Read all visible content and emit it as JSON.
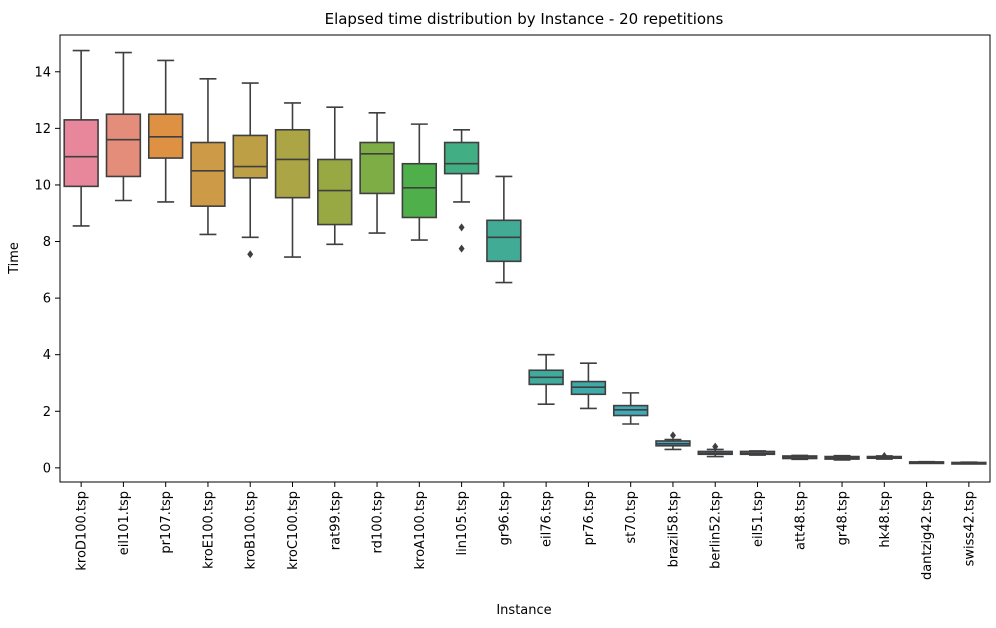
{
  "chart_data": {
    "type": "box",
    "title": "Elapsed time distribution by Instance - 20 repetitions",
    "xlabel": "Instance",
    "ylabel": "Time",
    "ylim": [
      -0.5,
      15.3
    ],
    "yticks": [
      0,
      2,
      4,
      6,
      8,
      10,
      12,
      14
    ],
    "grid": false,
    "categories": [
      "kroD100.tsp",
      "eil101.tsp",
      "pr107.tsp",
      "kroE100.tsp",
      "kroB100.tsp",
      "kroC100.tsp",
      "rat99.tsp",
      "rd100.tsp",
      "kroA100.tsp",
      "lin105.tsp",
      "gr96.tsp",
      "eil76.tsp",
      "pr76.tsp",
      "st70.tsp",
      "brazil58.tsp",
      "berlin52.tsp",
      "eil51.tsp",
      "att48.tsp",
      "gr48.tsp",
      "hk48.tsp",
      "dantzig42.tsp",
      "swiss42.tsp"
    ],
    "boxes": [
      {
        "min": 8.55,
        "q1": 9.95,
        "median": 11.0,
        "q3": 12.3,
        "max": 14.75,
        "outliers": [],
        "color": "#e8869b"
      },
      {
        "min": 9.45,
        "q1": 10.3,
        "median": 11.6,
        "q3": 12.5,
        "max": 14.68,
        "outliers": [],
        "color": "#e48d7b"
      },
      {
        "min": 9.4,
        "q1": 10.95,
        "median": 11.7,
        "q3": 12.5,
        "max": 14.4,
        "outliers": [],
        "color": "#df9143"
      },
      {
        "min": 8.25,
        "q1": 9.25,
        "median": 10.5,
        "q3": 11.5,
        "max": 13.75,
        "outliers": [],
        "color": "#cd9a47"
      },
      {
        "min": 8.15,
        "q1": 10.25,
        "median": 10.65,
        "q3": 11.75,
        "max": 13.6,
        "outliers": [
          7.55
        ],
        "color": "#bd9f45"
      },
      {
        "min": 7.45,
        "q1": 9.55,
        "median": 10.9,
        "q3": 11.95,
        "max": 12.9,
        "outliers": [],
        "color": "#aca545"
      },
      {
        "min": 7.9,
        "q1": 8.6,
        "median": 9.8,
        "q3": 10.9,
        "max": 12.75,
        "outliers": [],
        "color": "#98a843"
      },
      {
        "min": 8.3,
        "q1": 9.7,
        "median": 11.1,
        "q3": 11.5,
        "max": 12.55,
        "outliers": [],
        "color": "#7ead45"
      },
      {
        "min": 8.05,
        "q1": 8.85,
        "median": 9.9,
        "q3": 10.75,
        "max": 12.15,
        "outliers": [],
        "color": "#4fb04b"
      },
      {
        "min": 9.4,
        "q1": 10.4,
        "median": 10.75,
        "q3": 11.5,
        "max": 11.95,
        "outliers": [
          8.5,
          7.75
        ],
        "color": "#42ae83"
      },
      {
        "min": 6.55,
        "q1": 7.3,
        "median": 8.15,
        "q3": 8.75,
        "max": 10.3,
        "outliers": [],
        "color": "#41ab95"
      },
      {
        "min": 2.25,
        "q1": 2.95,
        "median": 3.2,
        "q3": 3.45,
        "max": 4.0,
        "outliers": [],
        "color": "#3fab9d"
      },
      {
        "min": 2.1,
        "q1": 2.6,
        "median": 2.85,
        "q3": 3.05,
        "max": 3.7,
        "outliers": [],
        "color": "#40aaa9"
      },
      {
        "min": 1.55,
        "q1": 1.85,
        "median": 2.05,
        "q3": 2.2,
        "max": 2.65,
        "outliers": [],
        "color": "#42a9b6"
      },
      {
        "min": 0.65,
        "q1": 0.78,
        "median": 0.85,
        "q3": 0.95,
        "max": 1.0,
        "outliers": [
          1.15
        ],
        "color": "#44a8c5"
      },
      {
        "min": 0.4,
        "q1": 0.48,
        "median": 0.52,
        "q3": 0.58,
        "max": 0.65,
        "outliers": [
          0.75
        ],
        "color": "#52a2d4"
      },
      {
        "min": 0.45,
        "q1": 0.48,
        "median": 0.52,
        "q3": 0.58,
        "max": 0.6,
        "outliers": [],
        "color": "#7a97d8"
      },
      {
        "min": 0.3,
        "q1": 0.33,
        "median": 0.38,
        "q3": 0.42,
        "max": 0.44,
        "outliers": [],
        "color": "#9f8bd6"
      },
      {
        "min": 0.28,
        "q1": 0.31,
        "median": 0.35,
        "q3": 0.4,
        "max": 0.43,
        "outliers": [],
        "color": "#c27cd0"
      },
      {
        "min": 0.31,
        "q1": 0.34,
        "median": 0.37,
        "q3": 0.4,
        "max": 0.42,
        "outliers": [
          0.42
        ],
        "color": "#d676c1"
      },
      {
        "min": 0.17,
        "q1": 0.18,
        "median": 0.2,
        "q3": 0.21,
        "max": 0.22,
        "outliers": [],
        "color": "#e07bb0"
      },
      {
        "min": 0.16,
        "q1": 0.17,
        "median": 0.18,
        "q3": 0.19,
        "max": 0.2,
        "outliers": [],
        "color": "#e680a0"
      }
    ]
  }
}
